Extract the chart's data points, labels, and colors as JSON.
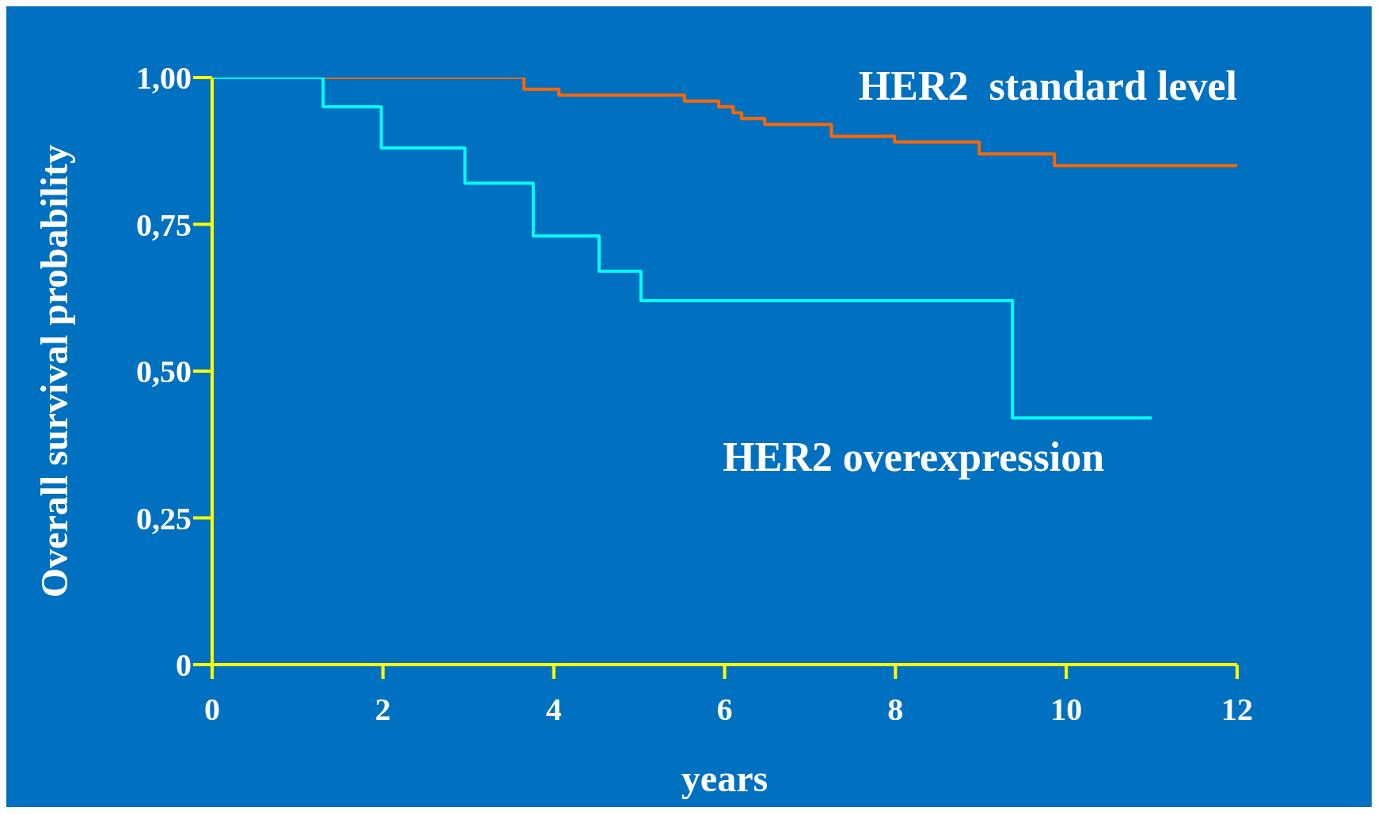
{
  "chart_data": {
    "type": "step",
    "xlabel": "years",
    "ylabel": "Overall survival probability",
    "xlim": [
      0,
      12
    ],
    "xticks": [
      0,
      2,
      4,
      6,
      8,
      10,
      12
    ],
    "ylim": [
      0,
      1
    ],
    "yticks": [
      {
        "value": 0,
        "label": "0"
      },
      {
        "value": 0.25,
        "label": "0,25"
      },
      {
        "value": 0.5,
        "label": "0,50"
      },
      {
        "value": 0.75,
        "label": "0,75"
      },
      {
        "value": 1,
        "label": "1,00"
      }
    ],
    "grid": false,
    "legend": false,
    "marker": "none",
    "line_style": "solid",
    "series": [
      {
        "name": "HER2  standard level",
        "color": "#ff6600",
        "x": [
          1.3,
          3.65,
          4.06,
          5.53,
          5.93,
          6.1,
          6.2,
          6.47,
          7.25,
          7.99,
          8.98,
          9.86,
          12
        ],
        "values": [
          1,
          0.98,
          0.97,
          0.96,
          0.95,
          0.94,
          0.93,
          0.92,
          0.9,
          0.89,
          0.87,
          0.85,
          0.85
        ]
      },
      {
        "name": "HER2 overexpression",
        "color": "#00ffff",
        "x": [
          0,
          1.3,
          1.98,
          2.96,
          3.76,
          4.53,
          5.02,
          9.37,
          11
        ],
        "values": [
          1,
          0.95,
          0.88,
          0.82,
          0.73,
          0.67,
          0.62,
          0.42,
          0.42
        ]
      }
    ]
  }
}
